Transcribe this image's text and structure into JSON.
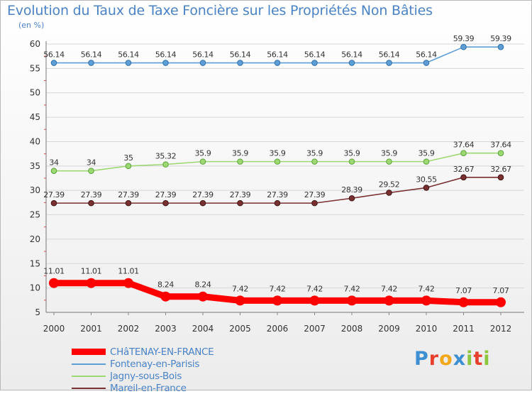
{
  "chart_data": {
    "type": "line",
    "title": "Evolution du Taux de Taxe Foncière sur les Propriétés Non Bâties",
    "ylabel": "(en %)",
    "xlabel": "",
    "ylim": [
      5,
      60
    ],
    "yticks": [
      5,
      10,
      15,
      20,
      25,
      30,
      35,
      40,
      45,
      50,
      55,
      60
    ],
    "categories": [
      "2000",
      "2001",
      "2002",
      "2003",
      "2004",
      "2005",
      "2006",
      "2007",
      "2008",
      "2009",
      "2010",
      "2011",
      "2012"
    ],
    "series": [
      {
        "name": "Fontenay-en-Parisis",
        "color": "#5e9ed6",
        "values": [
          56.14,
          56.14,
          56.14,
          56.14,
          56.14,
          56.14,
          56.14,
          56.14,
          56.14,
          56.14,
          56.14,
          59.39,
          59.39
        ],
        "labels": [
          "56.14",
          "56.14",
          "56.14",
          "56.14",
          "56.14",
          "56.14",
          "56.14",
          "56.14",
          "56.14",
          "56.14",
          "56.14",
          "59.39",
          "59.39"
        ]
      },
      {
        "name": "Jagny-sous-Bois",
        "color": "#9ed873",
        "values": [
          34,
          34,
          35,
          35.32,
          35.9,
          35.9,
          35.9,
          35.9,
          35.9,
          35.9,
          35.9,
          37.64,
          37.64
        ],
        "labels": [
          "34",
          "34",
          "35",
          "35.32",
          "35.9",
          "35.9",
          "35.9",
          "35.9",
          "35.9",
          "35.9",
          "35.9",
          "37.64",
          "37.64"
        ]
      },
      {
        "name": "Mareil-en-France",
        "color": "#7a3030",
        "values": [
          27.39,
          27.39,
          27.39,
          27.39,
          27.39,
          27.39,
          27.39,
          27.39,
          28.39,
          29.52,
          30.55,
          32.67,
          32.67
        ],
        "labels": [
          "27.39",
          "27.39",
          "27.39",
          "27.39",
          "27.39",
          "27.39",
          "27.39",
          "27.39",
          "28.39",
          "29.52",
          "30.55",
          "32.67",
          "32.67"
        ]
      },
      {
        "name": "CHâTENAY-EN-FRANCE",
        "color": "#ff0000",
        "values": [
          11.01,
          11.01,
          11.01,
          8.24,
          8.24,
          7.42,
          7.42,
          7.42,
          7.42,
          7.42,
          7.42,
          7.07,
          7.07
        ],
        "labels": [
          "11.01",
          "11.01",
          "11.01",
          "8.24",
          "8.24",
          "7.42",
          "7.42",
          "7.42",
          "7.42",
          "7.42",
          "7.42",
          "7.07",
          "7.07"
        ]
      }
    ],
    "legend": {
      "placement": "bottom-left",
      "order": [
        "CHâTENAY-EN-FRANCE",
        "Fontenay-en-Parisis",
        "Jagny-sous-Bois",
        "Mareil-en-France"
      ]
    }
  },
  "logo": {
    "letters": [
      "P",
      "r",
      "o",
      "x",
      "i",
      "t",
      "i"
    ],
    "colors": [
      "#3d8fd1",
      "#e8402d",
      "#f3a81b",
      "#3d8fd1",
      "#8dc63f",
      "#e8402d",
      "#8dc63f"
    ]
  }
}
